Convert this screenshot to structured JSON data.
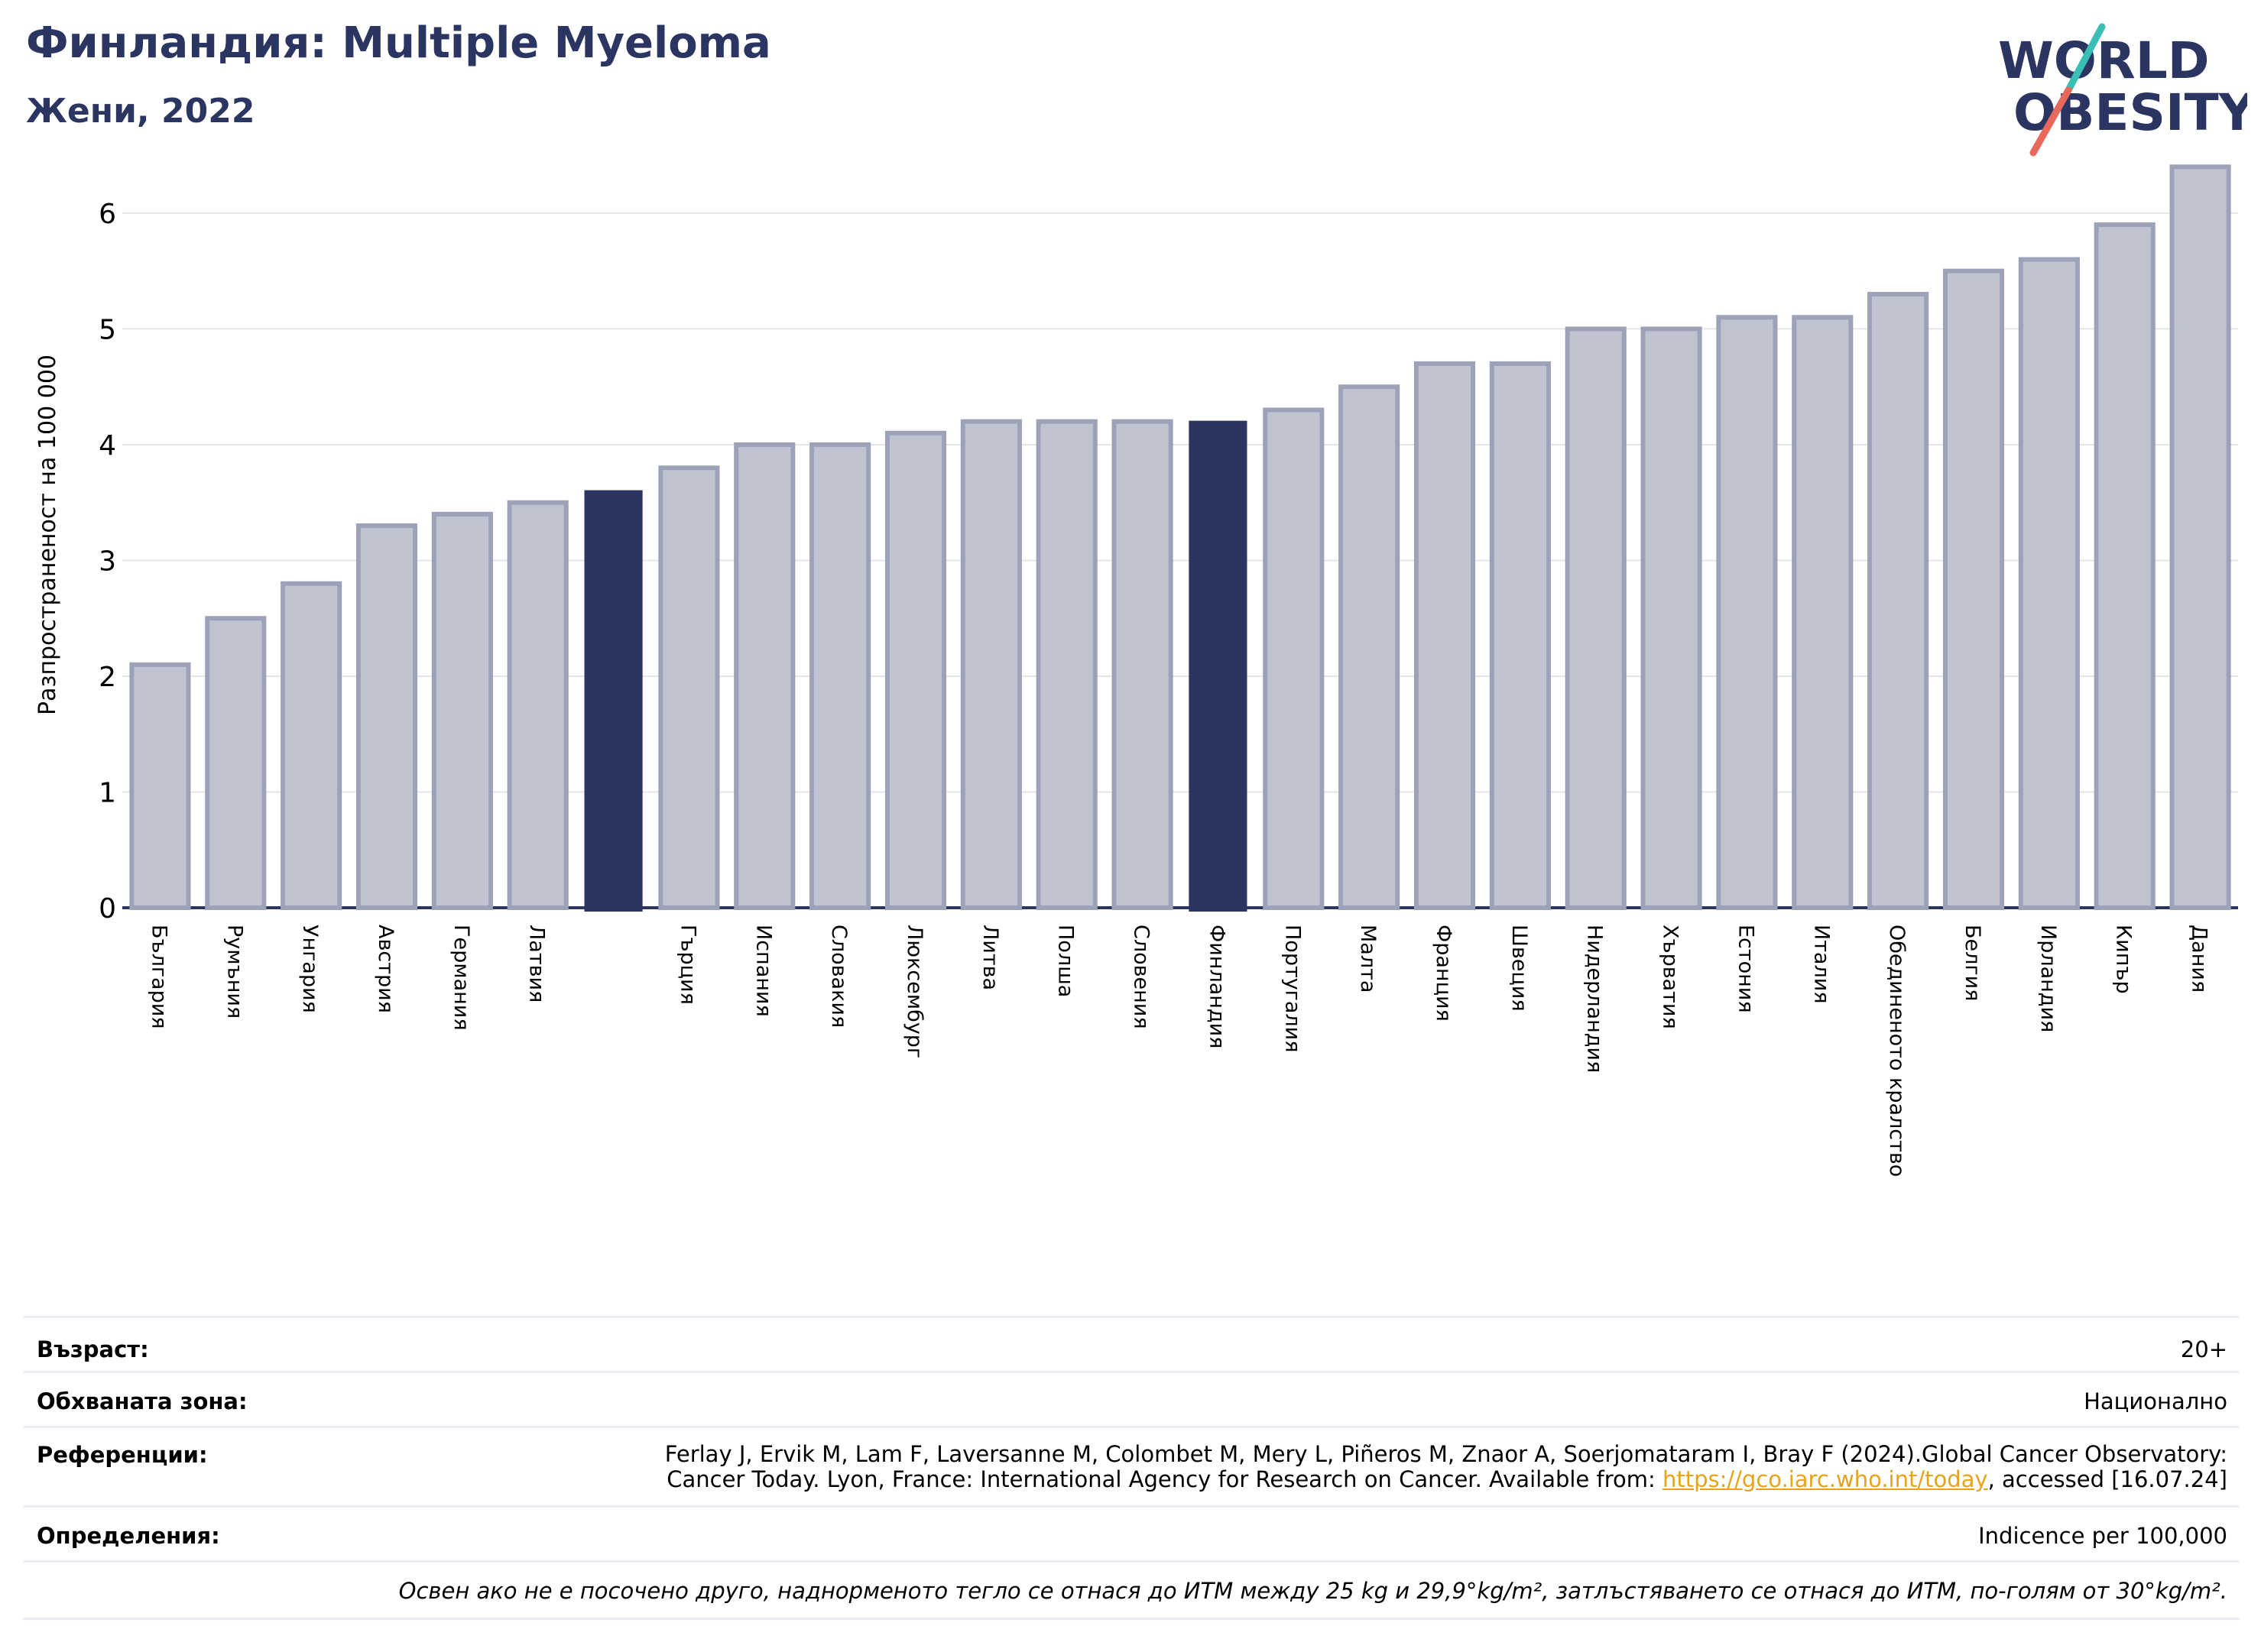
{
  "header": {
    "title": "Финландия: Multiple Myeloma",
    "subtitle": "Жени, 2022"
  },
  "logo": {
    "line1": "WORLD",
    "line2": "OBESITY"
  },
  "colors": {
    "bar": "#c0c3d0",
    "bar_edge": "#9da2b8",
    "highlight": "#2a3561",
    "grid": "#e4e6ec"
  },
  "chart_data": {
    "type": "bar",
    "ylabel": "Разпространеност  на 100 000",
    "ylim": [
      0,
      6.6
    ],
    "yticks": [
      0,
      1,
      2,
      3,
      4,
      5,
      6
    ],
    "grid": true,
    "categories": [
      "България",
      "Румъния",
      "Унгария",
      "Австрия",
      "Германия",
      "Латвия",
      "",
      "Гърция",
      "Испания",
      "Словакия",
      "Люксембург",
      "Литва",
      "Полша",
      "Словения",
      "Финландия",
      "Португалия",
      "Малта",
      "Франция",
      "Швеция",
      "Нидерландия",
      "Хърватия",
      "Естония",
      "Италия",
      "Обединеното кралство",
      "Белгия",
      "Ирландия",
      "Кипър",
      "Дания"
    ],
    "values": [
      2.1,
      2.5,
      2.8,
      3.3,
      3.4,
      3.5,
      3.6,
      3.8,
      4.0,
      4.0,
      4.1,
      4.2,
      4.2,
      4.2,
      4.2,
      4.3,
      4.5,
      4.7,
      4.7,
      5.0,
      5.0,
      5.1,
      5.1,
      5.3,
      5.5,
      5.6,
      5.9,
      6.4
    ],
    "highlighted": [
      6,
      14
    ]
  },
  "info": {
    "age_label": "Възраст:",
    "age_value": "20+",
    "area_label": "Обхваната зона:",
    "area_value": "Национално",
    "ref_label": "Референции:",
    "ref_line1": "Ferlay J, Ervik M, Lam F, Laversanne M, Colombet M, Mery L, Piñeros M, Znaor A, Soerjomataram I, Bray F (2024).Global Cancer Observatory:",
    "ref_line2_pre": "Cancer Today. Lyon, France: International Agency for Research on Cancer. Available from: ",
    "ref_link": "https://gco.iarc.who.int/today",
    "ref_line2_post": ", accessed [16.07.24]",
    "def_label": "Определения:",
    "def_value": "Indicence per 100,000",
    "note": "Освен ако не е посочено друго, наднорменото тегло се отнася до ИТМ между 25 kg и 29,9°kg/m², затлъстяването се отнася до ИТМ, по-голям от 30°kg/m²."
  }
}
